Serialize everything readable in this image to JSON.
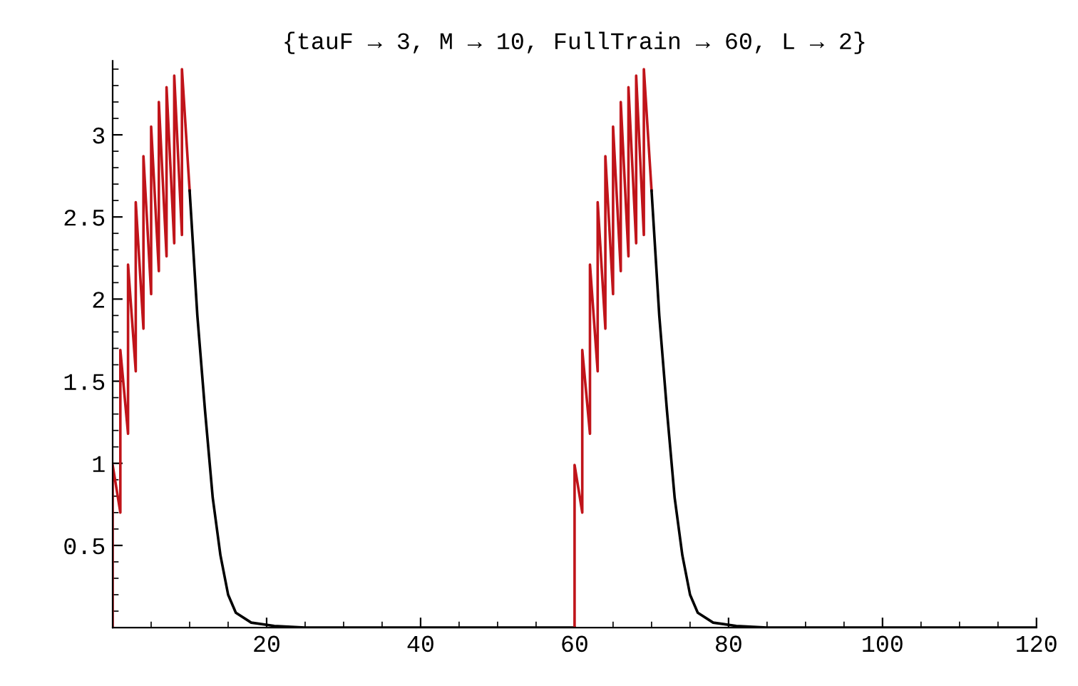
{
  "chart_data": {
    "type": "line",
    "title": "{tauF → 3, M → 10, FullTrain → 60, L → 2}",
    "xlim": [
      0,
      120
    ],
    "xticks": [
      20,
      40,
      60,
      80,
      100,
      120
    ],
    "ylim": [
      0,
      3.45
    ],
    "yticks": [
      0.5,
      1,
      1.5,
      2,
      2.5,
      3
    ],
    "grid": false,
    "legend": false,
    "marker": "none",
    "line_style": "solid",
    "series": [
      {
        "color": "#c0141a",
        "x": [
          0,
          0,
          1,
          1,
          2,
          2,
          3,
          3,
          4,
          4,
          5,
          5,
          6,
          6,
          7,
          7,
          8,
          8,
          9,
          9,
          10
        ],
        "values": [
          0,
          0.99,
          0.7,
          1.69,
          1.18,
          2.21,
          1.56,
          2.59,
          1.82,
          2.87,
          2.03,
          3.05,
          2.17,
          3.2,
          2.26,
          3.29,
          2.34,
          3.36,
          2.39,
          3.4,
          2.66
        ]
      },
      {
        "color": "#000000",
        "x": [
          10,
          11,
          12,
          13,
          14,
          15,
          16,
          18,
          21,
          25,
          60
        ],
        "values": [
          2.66,
          1.9,
          1.32,
          0.79,
          0.44,
          0.2,
          0.09,
          0.03,
          0.01,
          0,
          0
        ]
      },
      {
        "color": "#c0141a",
        "x": [
          60,
          60,
          61,
          61,
          62,
          62,
          63,
          63,
          64,
          64,
          65,
          65,
          66,
          66,
          67,
          67,
          68,
          68,
          69,
          69,
          70
        ],
        "values": [
          0,
          0.99,
          0.7,
          1.69,
          1.18,
          2.21,
          1.56,
          2.59,
          1.82,
          2.87,
          2.03,
          3.05,
          2.17,
          3.2,
          2.26,
          3.29,
          2.34,
          3.36,
          2.39,
          3.4,
          2.66
        ]
      },
      {
        "color": "#000000",
        "x": [
          70,
          71,
          72,
          73,
          74,
          75,
          76,
          78,
          81,
          85,
          120
        ],
        "values": [
          2.66,
          1.9,
          1.32,
          0.79,
          0.44,
          0.2,
          0.09,
          0.03,
          0.01,
          0,
          0
        ]
      }
    ]
  }
}
